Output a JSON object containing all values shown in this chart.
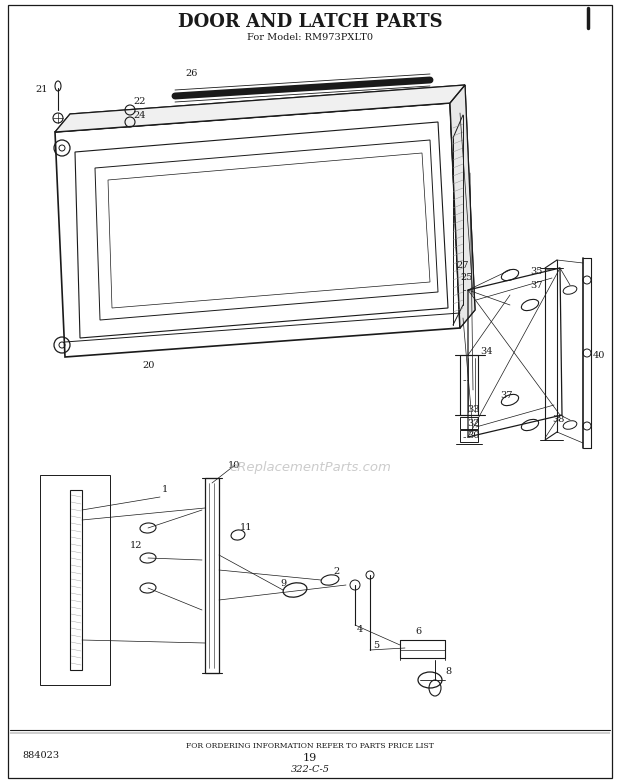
{
  "title": "DOOR AND LATCH PARTS",
  "subtitle": "For Model: RM973PXLT0",
  "footer_text": "FOR ORDERING INFORMATION REFER TO PARTS PRICE LIST",
  "page_number": "19",
  "catalog_number": "322-C-5",
  "part_number": "884023",
  "bg_color": "#ffffff",
  "line_color": "#1a1a1a",
  "watermark": "eReplacementParts.com"
}
